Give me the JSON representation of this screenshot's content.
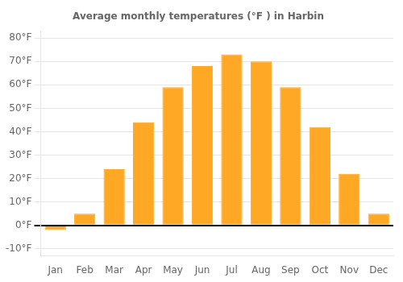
{
  "chart_data": {
    "type": "bar",
    "title": "Average monthly temperatures (°F ) in Harbin",
    "categories": [
      "Jan",
      "Feb",
      "Mar",
      "Apr",
      "May",
      "Jun",
      "Jul",
      "Aug",
      "Sep",
      "Oct",
      "Nov",
      "Dec"
    ],
    "values": [
      -2,
      5,
      24,
      44,
      59,
      68,
      73,
      70,
      59,
      42,
      22,
      5
    ],
    "color": "#FFA826",
    "ylim": [
      -13,
      83
    ],
    "yticks": [
      {
        "value": -10,
        "label": "-10°F"
      },
      {
        "value": 0,
        "label": "0°F"
      },
      {
        "value": 10,
        "label": "10°F"
      },
      {
        "value": 20,
        "label": "20°F"
      },
      {
        "value": 30,
        "label": "30°F"
      },
      {
        "value": 40,
        "label": "40°F"
      },
      {
        "value": 50,
        "label": "50°F"
      },
      {
        "value": 60,
        "label": "60°F"
      },
      {
        "value": 70,
        "label": "70°F"
      },
      {
        "value": 80,
        "label": "80°F"
      }
    ],
    "grid": true
  }
}
